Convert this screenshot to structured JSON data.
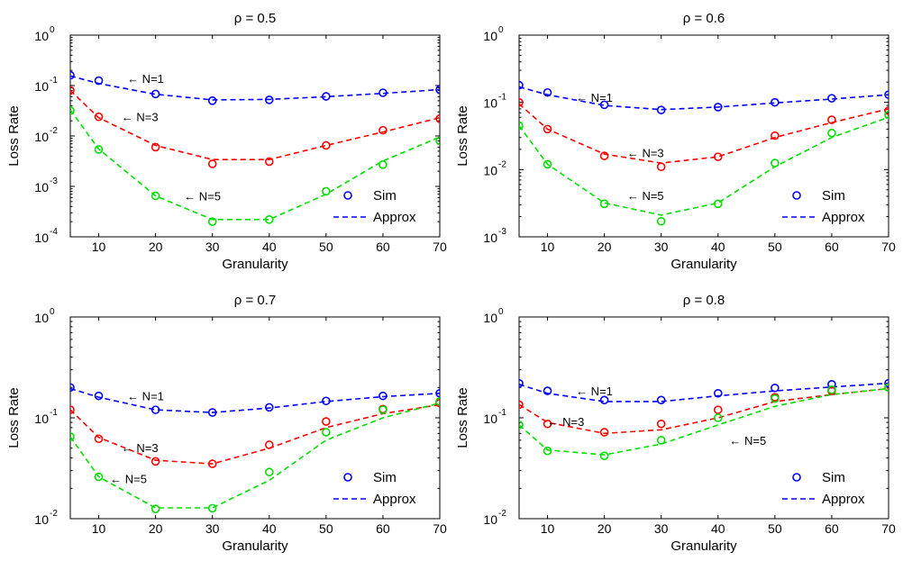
{
  "chart_data": [
    {
      "type": "line",
      "title": "ρ = 0.5",
      "xlabel": "Granularity",
      "ylabel": "Loss Rate",
      "yscale": "log",
      "xlim": [
        5,
        70
      ],
      "ylim": [
        0.0001,
        1
      ],
      "xticks": [
        10,
        20,
        30,
        40,
        50,
        60,
        70
      ],
      "ytick_labels": [
        {
          "base": "10",
          "exp": "0",
          "value": 1
        },
        {
          "base": "10",
          "exp": "-1",
          "value": 0.1
        },
        {
          "base": "10",
          "exp": "-2",
          "value": 0.01
        },
        {
          "base": "10",
          "exp": "-3",
          "value": 0.001
        },
        {
          "base": "10",
          "exp": "-4",
          "value": 0.0001
        }
      ],
      "x": [
        5,
        10,
        20,
        30,
        40,
        50,
        60,
        70
      ],
      "series": [
        {
          "label": "N=1",
          "color": "#0000ff",
          "sim": [
            0.16,
            0.125,
            0.068,
            0.05,
            0.052,
            0.061,
            0.072,
            0.083
          ],
          "approx": [
            0.155,
            0.11,
            0.067,
            0.052,
            0.053,
            0.06,
            0.07,
            0.083
          ]
        },
        {
          "label": "N=3",
          "color": "#ff0000",
          "sim": [
            0.08,
            0.024,
            0.006,
            0.0028,
            0.0031,
            0.0065,
            0.013,
            0.022
          ],
          "approx": [
            0.08,
            0.023,
            0.0065,
            0.0034,
            0.0034,
            0.0065,
            0.012,
            0.023
          ]
        },
        {
          "label": "N=5",
          "color": "#00e000",
          "sim": [
            0.032,
            0.0054,
            0.00065,
            0.0002,
            0.00022,
            0.0008,
            0.0027,
            0.008
          ],
          "approx": [
            0.033,
            0.0055,
            0.00065,
            0.00022,
            0.00022,
            0.0007,
            0.0032,
            0.0095
          ]
        }
      ],
      "annotations": [
        {
          "text": "← N=1",
          "x": 15,
          "y": 0.14
        },
        {
          "text": "← N=3",
          "x": 14,
          "y": 0.024
        },
        {
          "text": "← N=5",
          "x": 25,
          "y": 0.00065
        }
      ],
      "legend": {
        "sim": "Sim",
        "approx": "Approx",
        "position": "bottom-right"
      }
    },
    {
      "type": "line",
      "title": "ρ = 0.6",
      "xlabel": "Granularity",
      "ylabel": "Loss Rate",
      "yscale": "log",
      "xlim": [
        5,
        70
      ],
      "ylim": [
        0.001,
        1
      ],
      "xticks": [
        10,
        20,
        30,
        40,
        50,
        60,
        70
      ],
      "ytick_labels": [
        {
          "base": "10",
          "exp": "0",
          "value": 1
        },
        {
          "base": "10",
          "exp": "-1",
          "value": 0.1
        },
        {
          "base": "10",
          "exp": "-2",
          "value": 0.01
        },
        {
          "base": "10",
          "exp": "-3",
          "value": 0.001
        }
      ],
      "x": [
        5,
        10,
        20,
        30,
        40,
        50,
        60,
        70
      ],
      "series": [
        {
          "label": "N=1",
          "color": "#0000ff",
          "sim": [
            0.18,
            0.14,
            0.092,
            0.077,
            0.085,
            0.1,
            0.115,
            0.13
          ],
          "approx": [
            0.17,
            0.13,
            0.09,
            0.078,
            0.085,
            0.098,
            0.112,
            0.13
          ]
        },
        {
          "label": "N=3",
          "color": "#ff0000",
          "sim": [
            0.1,
            0.04,
            0.016,
            0.011,
            0.0155,
            0.032,
            0.055,
            0.075
          ],
          "approx": [
            0.095,
            0.04,
            0.017,
            0.0125,
            0.0155,
            0.03,
            0.05,
            0.08
          ]
        },
        {
          "label": "N=5",
          "color": "#00e000",
          "sim": [
            0.045,
            0.012,
            0.0031,
            0.0017,
            0.0031,
            0.0125,
            0.035,
            0.065
          ],
          "approx": [
            0.045,
            0.012,
            0.0032,
            0.0021,
            0.0032,
            0.011,
            0.03,
            0.06
          ]
        }
      ],
      "annotations": [
        {
          "text": "← N=1",
          "x": 15,
          "y": 0.12
        },
        {
          "text": "← N=3",
          "x": 24,
          "y": 0.018
        },
        {
          "text": "← N=5",
          "x": 24,
          "y": 0.0041
        }
      ],
      "legend": {
        "sim": "Sim",
        "approx": "Approx",
        "position": "bottom-right"
      }
    },
    {
      "type": "line",
      "title": "ρ = 0.7",
      "xlabel": "Granularity",
      "ylabel": "Loss Rate",
      "yscale": "log",
      "xlim": [
        5,
        70
      ],
      "ylim": [
        0.01,
        1
      ],
      "xticks": [
        10,
        20,
        30,
        40,
        50,
        60,
        70
      ],
      "ytick_labels": [
        {
          "base": "10",
          "exp": "0",
          "value": 1
        },
        {
          "base": "10",
          "exp": "-1",
          "value": 0.1
        },
        {
          "base": "10",
          "exp": "-2",
          "value": 0.01
        }
      ],
      "x": [
        5,
        10,
        20,
        30,
        40,
        50,
        60,
        70
      ],
      "series": [
        {
          "label": "N=1",
          "color": "#0000ff",
          "sim": [
            0.2,
            0.165,
            0.12,
            0.113,
            0.127,
            0.147,
            0.165,
            0.175
          ],
          "approx": [
            0.195,
            0.16,
            0.12,
            0.113,
            0.125,
            0.145,
            0.162,
            0.175
          ]
        },
        {
          "label": "N=3",
          "color": "#ff0000",
          "sim": [
            0.12,
            0.062,
            0.037,
            0.035,
            0.054,
            0.092,
            0.122,
            0.14
          ],
          "approx": [
            0.12,
            0.064,
            0.038,
            0.035,
            0.05,
            0.08,
            0.11,
            0.135
          ]
        },
        {
          "label": "N=5",
          "color": "#00e000",
          "sim": [
            0.065,
            0.026,
            0.0125,
            0.0127,
            0.029,
            0.072,
            0.12,
            0.145
          ],
          "approx": [
            0.065,
            0.026,
            0.0128,
            0.0128,
            0.024,
            0.06,
            0.1,
            0.14
          ]
        }
      ],
      "annotations": [
        {
          "text": "← N=1",
          "x": 15,
          "y": 0.165
        },
        {
          "text": "← N=3",
          "x": 14,
          "y": 0.051
        },
        {
          "text": "← N=5",
          "x": 12,
          "y": 0.025
        }
      ],
      "legend": {
        "sim": "Sim",
        "approx": "Approx",
        "position": "bottom-right"
      }
    },
    {
      "type": "line",
      "title": "ρ = 0.8",
      "xlabel": "Granularity",
      "ylabel": "Loss Rate",
      "yscale": "log",
      "xlim": [
        5,
        70
      ],
      "ylim": [
        0.01,
        1
      ],
      "xticks": [
        10,
        20,
        30,
        40,
        50,
        60,
        70
      ],
      "ytick_labels": [
        {
          "base": "10",
          "exp": "0",
          "value": 1
        },
        {
          "base": "10",
          "exp": "-1",
          "value": 0.1
        },
        {
          "base": "10",
          "exp": "-2",
          "value": 0.01
        }
      ],
      "x": [
        5,
        10,
        20,
        30,
        40,
        50,
        60,
        70
      ],
      "series": [
        {
          "label": "N=1",
          "color": "#0000ff",
          "sim": [
            0.22,
            0.185,
            0.15,
            0.15,
            0.175,
            0.198,
            0.215,
            0.22
          ],
          "approx": [
            0.215,
            0.175,
            0.145,
            0.145,
            0.165,
            0.185,
            0.202,
            0.22
          ]
        },
        {
          "label": "N=3",
          "color": "#ff0000",
          "sim": [
            0.135,
            0.087,
            0.072,
            0.087,
            0.12,
            0.16,
            0.185,
            0.2
          ],
          "approx": [
            0.135,
            0.09,
            0.07,
            0.076,
            0.1,
            0.145,
            0.17,
            0.195
          ]
        },
        {
          "label": "N=5",
          "color": "#00e000",
          "sim": [
            0.085,
            0.047,
            0.042,
            0.06,
            0.1,
            0.155,
            0.19,
            0.2
          ],
          "approx": [
            0.085,
            0.048,
            0.043,
            0.055,
            0.085,
            0.13,
            0.17,
            0.195
          ]
        }
      ],
      "annotations": [
        {
          "text": "← N=1",
          "x": 15,
          "y": 0.185
        },
        {
          "text": "← N=3",
          "x": 10,
          "y": 0.092
        },
        {
          "text": "← N=5",
          "x": 42,
          "y": 0.06
        }
      ],
      "legend": {
        "sim": "Sim",
        "approx": "Approx",
        "position": "bottom-right"
      }
    }
  ]
}
